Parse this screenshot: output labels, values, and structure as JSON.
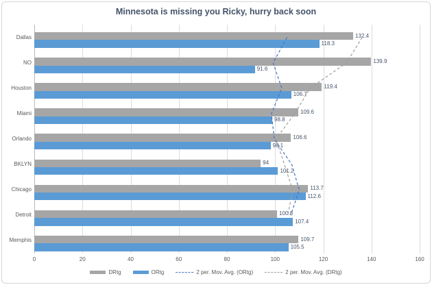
{
  "chart_data": {
    "type": "bar",
    "orientation": "horizontal",
    "title": "Minnesota is missing you Ricky, hurry back soon",
    "categories": [
      "Dallas",
      "NO",
      "Houston",
      "Miami",
      "Orlando",
      "BKLYN",
      "Chicago",
      "Detroit",
      "Memphis"
    ],
    "series": [
      {
        "name": "DRtg",
        "color": "#a6a6a6",
        "values": [
          132.4,
          139.9,
          119.4,
          109.6,
          106.6,
          94,
          113.7,
          100.8,
          109.7
        ]
      },
      {
        "name": "ORtg",
        "color": "#5b9bd5",
        "values": [
          118.3,
          91.6,
          106.7,
          98.8,
          98.1,
          101.2,
          112.6,
          107.4,
          105.5
        ]
      }
    ],
    "trendlines": [
      {
        "name": "2 per. Mov. Avg. (ORtg)",
        "source": "ORtg",
        "period": 2,
        "color": "#4472c4"
      },
      {
        "name": "2 per. Mov. Avg. (DRtg)",
        "source": "DRtg",
        "period": 2,
        "color": "#9e9e9e"
      }
    ],
    "x_ticks": [
      0,
      20,
      40,
      60,
      80,
      100,
      120,
      140,
      160
    ],
    "xlim": [
      0,
      160
    ],
    "grid": true,
    "legend_position": "bottom",
    "colors": {
      "title": "#44546a",
      "axis_text": "#595959",
      "data_label": "#44546a",
      "gridline": "#dcdcdc"
    }
  },
  "legend": {
    "items": [
      {
        "label": "DRtg",
        "swatch": "bar",
        "color": "#a6a6a6"
      },
      {
        "label": "ORtg",
        "swatch": "bar",
        "color": "#5b9bd5"
      },
      {
        "label": "2 per. Mov. Avg. (ORtg)",
        "swatch": "line",
        "color": "#4472c4"
      },
      {
        "label": "2 per. Mov. Avg. (DRtg)",
        "swatch": "line",
        "color": "#9e9e9e"
      }
    ]
  }
}
